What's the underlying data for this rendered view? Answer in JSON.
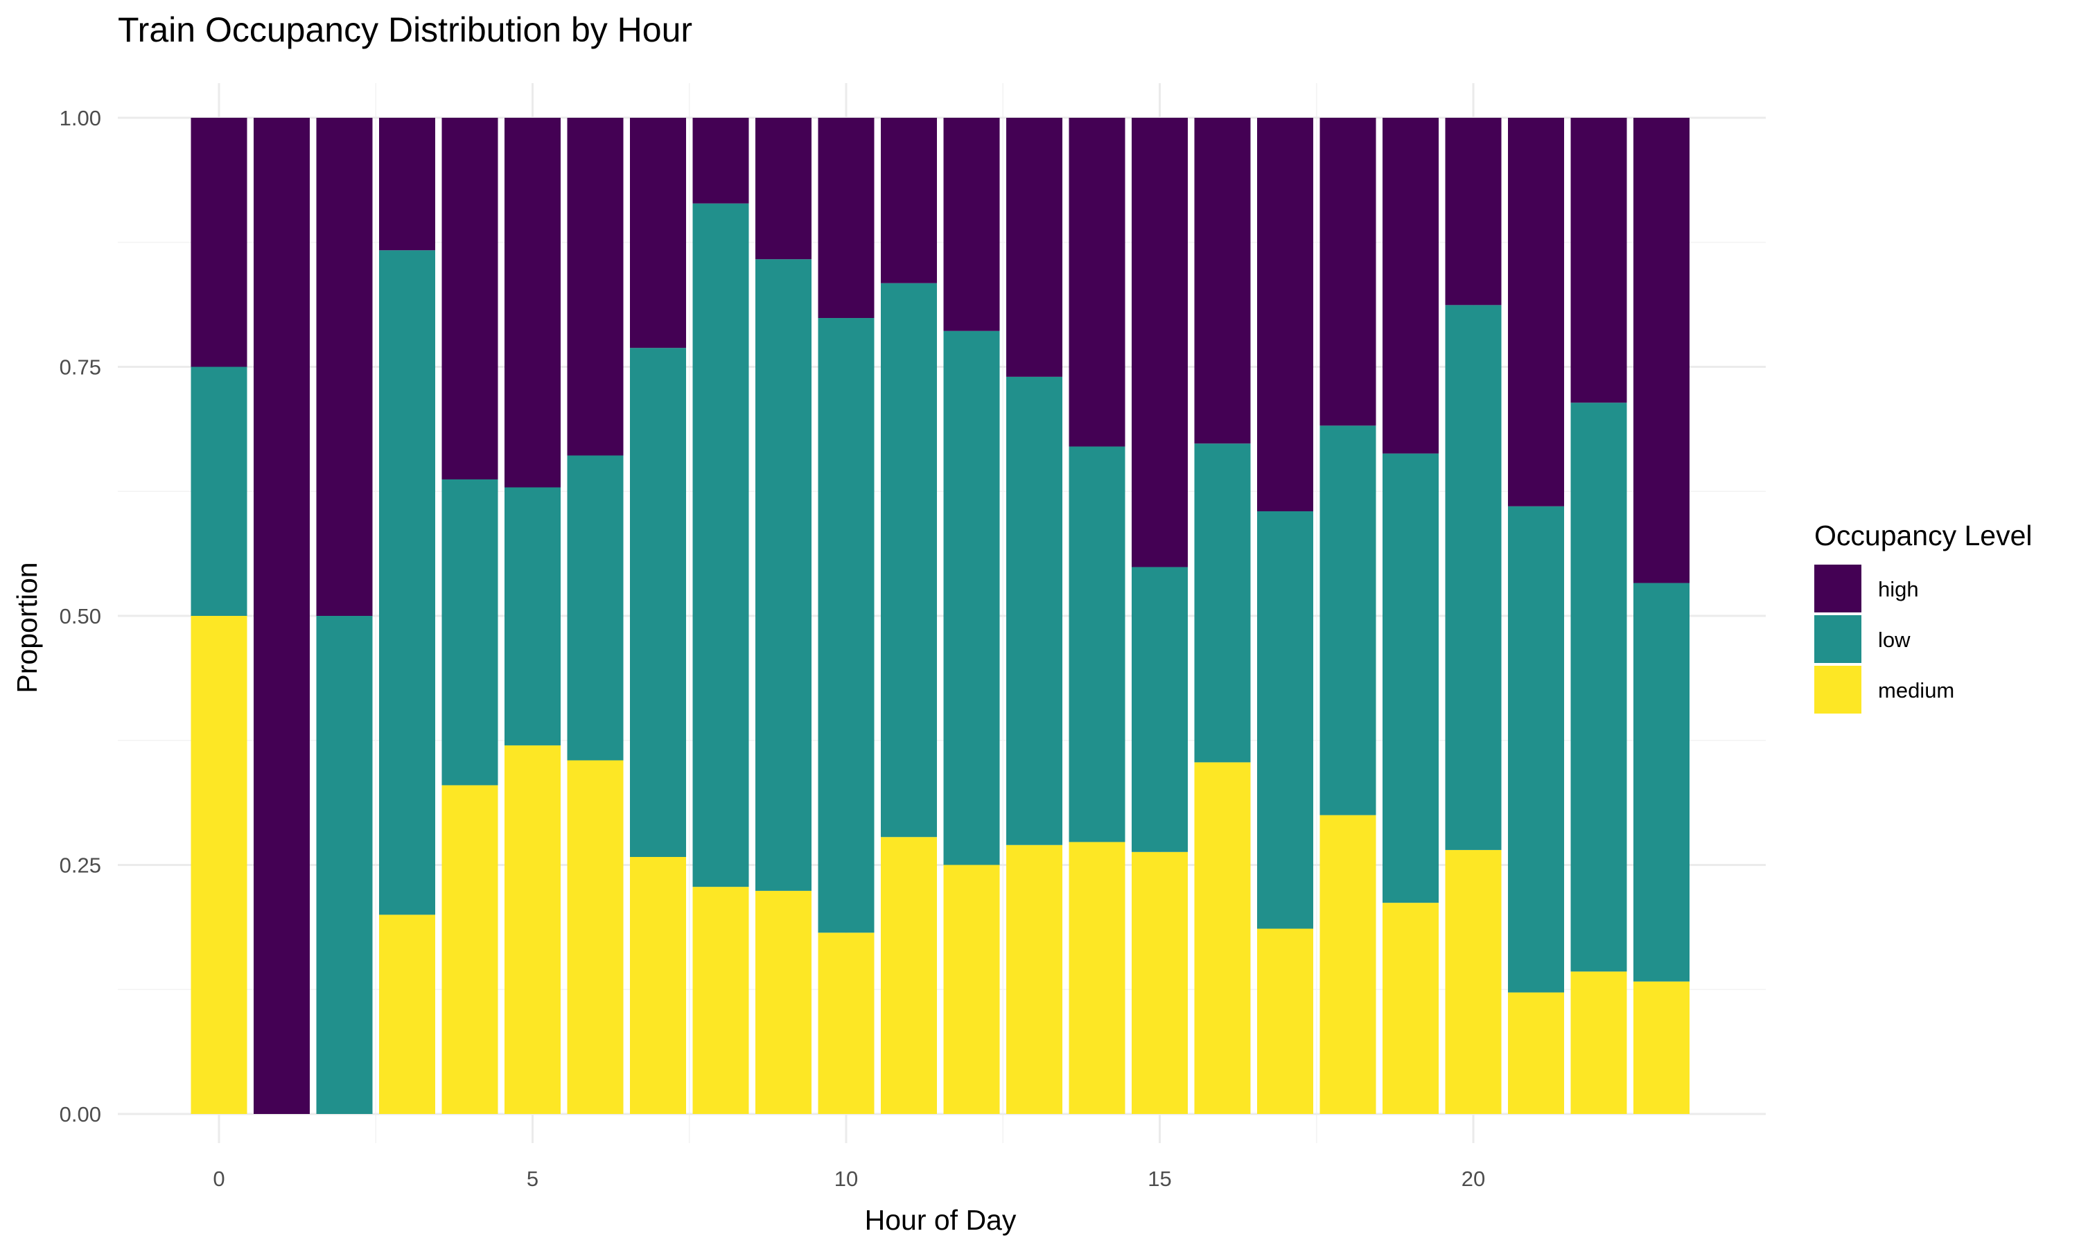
{
  "chart_data": {
    "type": "bar",
    "stacked": "fill",
    "title": "Train Occupancy Distribution by Hour",
    "xlabel": "Hour of Day",
    "ylabel": "Proportion",
    "x": [
      0,
      1,
      2,
      3,
      4,
      5,
      6,
      7,
      8,
      9,
      10,
      11,
      12,
      13,
      14,
      15,
      16,
      17,
      18,
      19,
      20,
      21,
      22,
      23
    ],
    "xticks": [
      0,
      5,
      10,
      15,
      20
    ],
    "yticks": [
      0,
      0.25,
      0.5,
      0.75,
      1
    ],
    "ytick_labels": [
      "0.00",
      "0.25",
      "0.50",
      "0.75",
      "1.00"
    ],
    "ylim": [
      0,
      1
    ],
    "grid": true,
    "legend": {
      "title": "Occupancy Level",
      "position": "right"
    },
    "series": [
      {
        "name": "medium",
        "color": "#FDE725",
        "values": [
          0.5,
          0,
          0,
          0.2,
          0.33,
          0.37,
          0.355,
          0.258,
          0.228,
          0.224,
          0.182,
          0.278,
          0.25,
          0.27,
          0.273,
          0.263,
          0.353,
          0.186,
          0.3,
          0.212,
          0.265,
          0.122,
          0.143,
          0.133
        ]
      },
      {
        "name": "low",
        "color": "#21908C",
        "values": [
          0.25,
          0,
          0.5,
          0.667,
          0.307,
          0.259,
          0.306,
          0.511,
          0.686,
          0.634,
          0.617,
          0.556,
          0.536,
          0.47,
          0.397,
          0.286,
          0.32,
          0.419,
          0.391,
          0.451,
          0.547,
          0.488,
          0.571,
          0.4
        ]
      },
      {
        "name": "high",
        "color": "#440154",
        "values": [
          0.25,
          1,
          0.5,
          0.133,
          0.363,
          0.371,
          0.339,
          0.231,
          0.086,
          0.142,
          0.201,
          0.166,
          0.214,
          0.26,
          0.33,
          0.451,
          0.327,
          0.395,
          0.309,
          0.337,
          0.188,
          0.39,
          0.286,
          0.467
        ]
      }
    ],
    "legend_order": [
      "high",
      "low",
      "medium"
    ]
  }
}
